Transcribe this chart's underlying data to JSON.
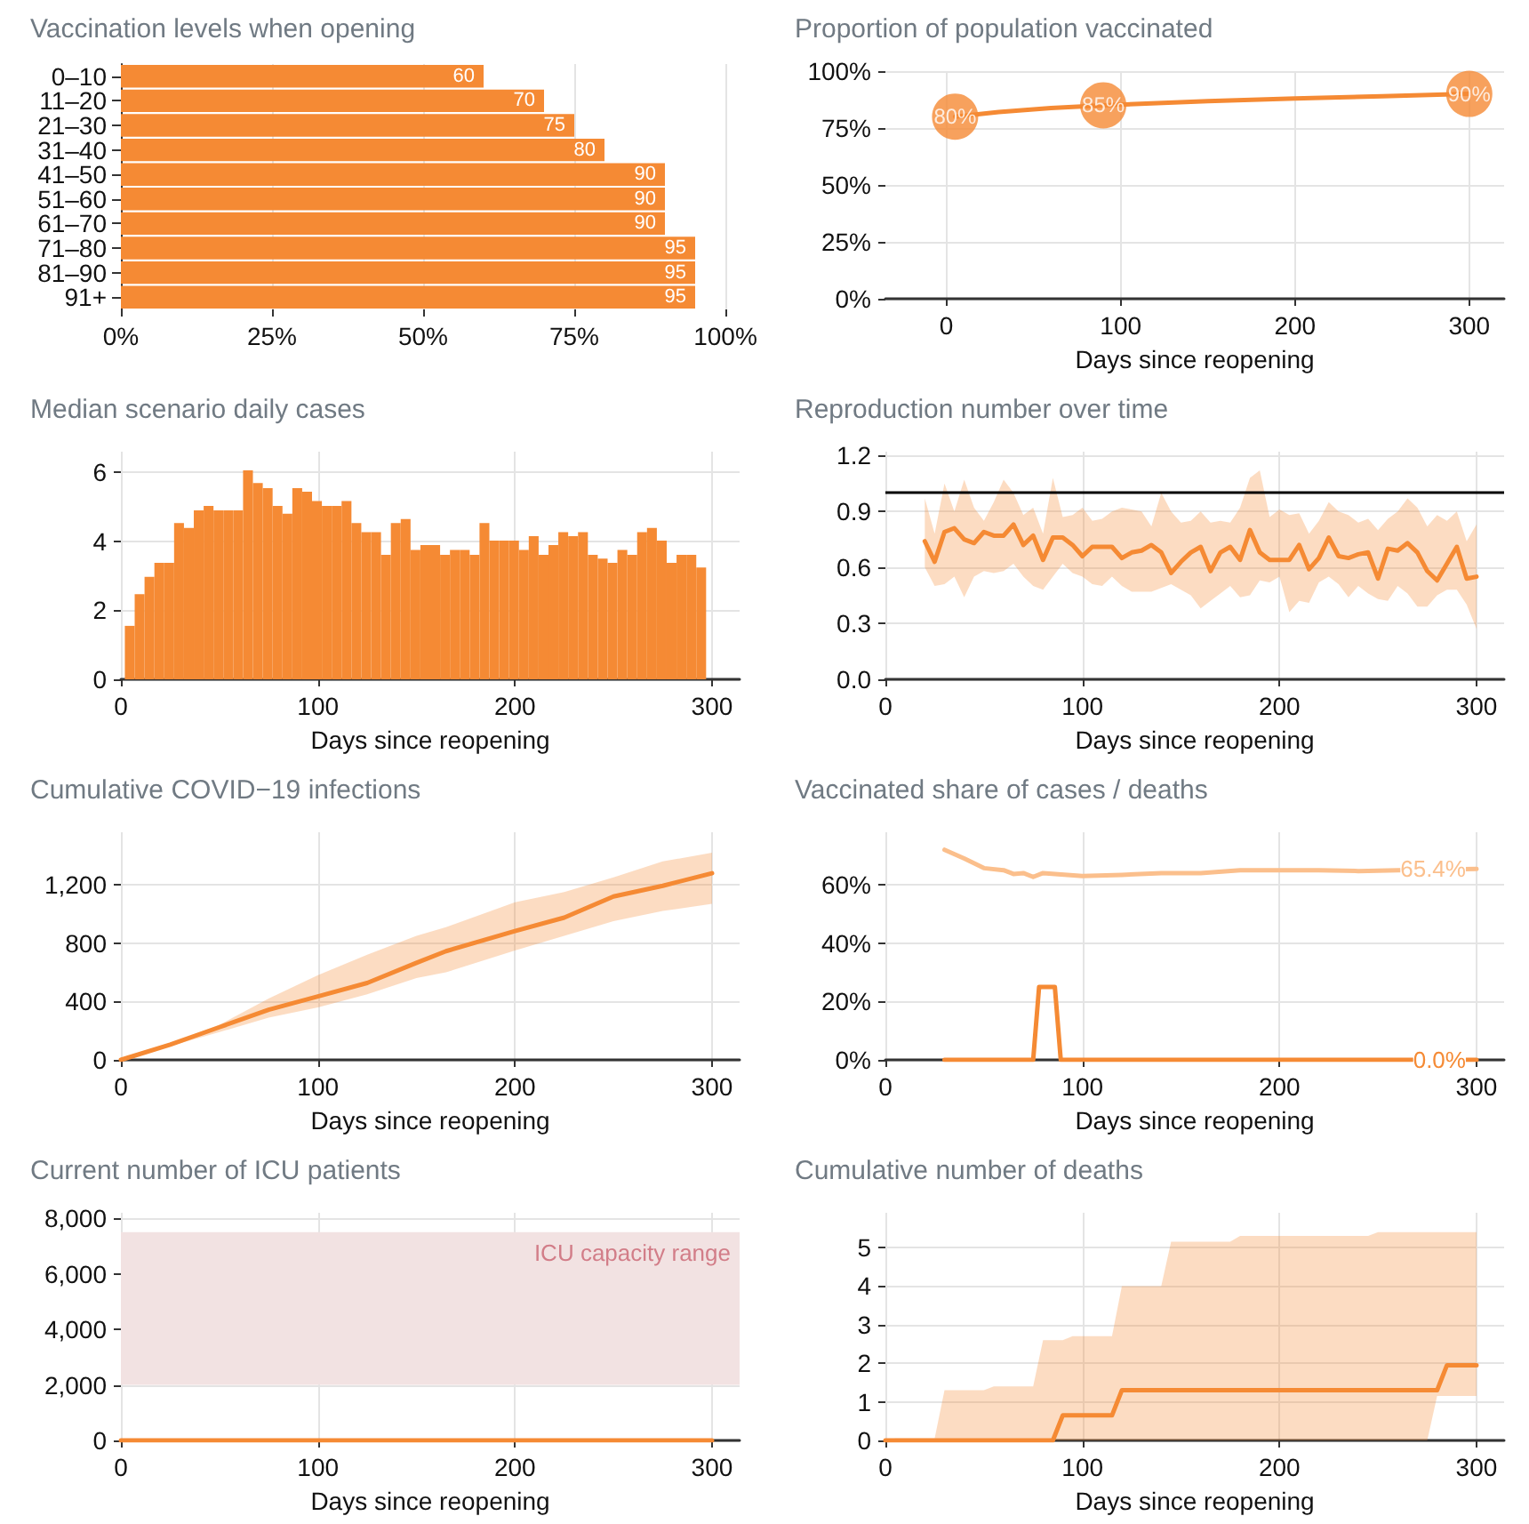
{
  "chart_data": [
    {
      "type": "bar",
      "orientation": "horizontal",
      "title": "Vaccination levels when opening",
      "categories": [
        "0–10",
        "11–20",
        "21–30",
        "31–40",
        "41–50",
        "51–60",
        "61–70",
        "71–80",
        "81–90",
        "91+"
      ],
      "values": [
        60,
        70,
        75,
        80,
        90,
        90,
        90,
        95,
        95,
        95
      ],
      "color": "#f58a34",
      "data_labels": true,
      "xlim": [
        0,
        100
      ],
      "xticks": [
        {
          "value": 0,
          "label": "0%"
        },
        {
          "value": 25,
          "label": "25%"
        },
        {
          "value": 50,
          "label": "50%"
        },
        {
          "value": 75,
          "label": "75%"
        },
        {
          "value": 100,
          "label": "100%"
        }
      ],
      "grid": "x"
    },
    {
      "type": "line",
      "title": "Proportion of population vaccinated",
      "xlabel": "Days since reopening",
      "series": [
        {
          "type": "line",
          "color": "#f58a34",
          "marker": "none",
          "x": [
            5,
            30,
            60,
            90,
            150,
            200,
            250,
            300
          ],
          "values": [
            80,
            82,
            83.8,
            85,
            86.8,
            88,
            89,
            90
          ]
        },
        {
          "type": "scatter",
          "color": "#f58a34",
          "marker": "circle",
          "x": [
            5,
            90,
            300
          ],
          "values": [
            80,
            85,
            90
          ],
          "value_labels": [
            "80%",
            "85%",
            "90%"
          ]
        }
      ],
      "xlim": [
        -35,
        320
      ],
      "xticks": [
        0,
        100,
        200,
        300
      ],
      "ylim": [
        0,
        100
      ],
      "yticks": [
        {
          "value": 0,
          "label": "0%"
        },
        {
          "value": 25,
          "label": "25%"
        },
        {
          "value": 50,
          "label": "50%"
        },
        {
          "value": 75,
          "label": "75%"
        },
        {
          "value": 100,
          "label": "100%"
        }
      ],
      "grid": true
    },
    {
      "type": "histogram",
      "title": "Median scenario daily cases",
      "xlabel": "Days since reopening",
      "color": "#f58a34",
      "bins": [
        2,
        7,
        12,
        17,
        22,
        27,
        32,
        37,
        42,
        47,
        52,
        57,
        62,
        67,
        72,
        77,
        82,
        87,
        92,
        97,
        102,
        107,
        112,
        117,
        122,
        127,
        132,
        137,
        142,
        147,
        152,
        157,
        162,
        167,
        172,
        177,
        182,
        187,
        192,
        197,
        202,
        207,
        212,
        217,
        222,
        227,
        232,
        237,
        242,
        247,
        252,
        257,
        262,
        267,
        272,
        277,
        282,
        287,
        292,
        297
      ],
      "values": [
        1.55,
        2.47,
        2.97,
        3.38,
        3.38,
        4.53,
        4.39,
        4.9,
        5.03,
        4.9,
        4.9,
        4.9,
        6.06,
        5.69,
        5.54,
        5.03,
        4.8,
        5.54,
        5.44,
        5.17,
        5.03,
        5.03,
        5.17,
        4.53,
        4.27,
        4.27,
        3.61,
        4.53,
        4.65,
        3.75,
        3.89,
        3.89,
        3.61,
        3.75,
        3.75,
        3.61,
        4.53,
        4.02,
        4.02,
        4.02,
        3.75,
        4.15,
        3.61,
        3.89,
        4.27,
        4.15,
        4.27,
        3.61,
        3.5,
        3.38,
        3.75,
        3.61,
        4.27,
        4.39,
        4.02,
        3.38,
        3.61,
        3.61,
        3.24
      ],
      "xlim": [
        0,
        314
      ],
      "xticks": [
        0,
        100,
        200,
        300
      ],
      "ylim": [
        0,
        6.6
      ],
      "yticks": [
        0,
        2,
        4,
        6
      ],
      "grid": true
    },
    {
      "type": "line",
      "title": "Reproduction number over time",
      "xlabel": "Days since reopening",
      "series": [
        {
          "color": "#f58a34",
          "x": [
            20,
            25,
            30,
            35,
            40,
            45,
            50,
            55,
            60,
            65,
            70,
            75,
            80,
            85,
            90,
            95,
            100,
            105,
            110,
            115,
            120,
            125,
            130,
            135,
            140,
            145,
            150,
            155,
            160,
            165,
            170,
            175,
            180,
            185,
            190,
            195,
            200,
            205,
            210,
            215,
            220,
            225,
            230,
            235,
            240,
            245,
            250,
            255,
            260,
            265,
            270,
            275,
            280,
            285,
            290,
            295,
            300
          ],
          "values": [
            0.74,
            0.63,
            0.79,
            0.81,
            0.75,
            0.73,
            0.79,
            0.77,
            0.77,
            0.83,
            0.72,
            0.77,
            0.64,
            0.76,
            0.76,
            0.72,
            0.66,
            0.71,
            0.71,
            0.71,
            0.65,
            0.68,
            0.69,
            0.72,
            0.68,
            0.57,
            0.63,
            0.68,
            0.71,
            0.58,
            0.68,
            0.71,
            0.64,
            0.8,
            0.68,
            0.64,
            0.64,
            0.64,
            0.72,
            0.59,
            0.65,
            0.76,
            0.66,
            0.65,
            0.67,
            0.68,
            0.54,
            0.7,
            0.69,
            0.73,
            0.68,
            0.58,
            0.53,
            0.62,
            0.71,
            0.54,
            0.55
          ],
          "upper": [
            0.97,
            0.78,
            1.05,
            0.9,
            1.07,
            0.92,
            0.85,
            0.95,
            1.07,
            1.0,
            0.88,
            0.92,
            0.78,
            1.08,
            0.87,
            0.88,
            0.92,
            0.85,
            0.86,
            0.9,
            0.92,
            0.91,
            0.9,
            0.82,
            1.0,
            0.9,
            0.84,
            0.85,
            0.9,
            0.84,
            0.85,
            0.84,
            0.92,
            1.08,
            1.12,
            0.87,
            0.91,
            0.88,
            0.89,
            0.78,
            0.85,
            0.95,
            0.9,
            0.88,
            0.84,
            0.86,
            0.8,
            0.86,
            0.9,
            0.97,
            0.92,
            0.82,
            0.88,
            0.85,
            0.9,
            0.74,
            0.83
          ],
          "lower": [
            0.6,
            0.5,
            0.51,
            0.55,
            0.44,
            0.55,
            0.58,
            0.57,
            0.58,
            0.62,
            0.55,
            0.5,
            0.48,
            0.55,
            0.62,
            0.57,
            0.55,
            0.51,
            0.5,
            0.55,
            0.5,
            0.47,
            0.47,
            0.47,
            0.49,
            0.51,
            0.48,
            0.45,
            0.38,
            0.42,
            0.46,
            0.5,
            0.44,
            0.45,
            0.53,
            0.52,
            0.55,
            0.36,
            0.42,
            0.41,
            0.52,
            0.55,
            0.51,
            0.44,
            0.5,
            0.46,
            0.43,
            0.42,
            0.5,
            0.46,
            0.39,
            0.39,
            0.45,
            0.48,
            0.48,
            0.4,
            0.27
          ]
        }
      ],
      "ref_lines": [
        {
          "axis": "y",
          "value": 1,
          "color": "#000000"
        }
      ],
      "xlim": [
        0,
        314
      ],
      "xticks": [
        0,
        100,
        200,
        300
      ],
      "ylim": [
        0,
        1.22
      ],
      "yticks": [
        {
          "value": 0,
          "label": "0.0"
        },
        0.3,
        0.6,
        0.9,
        1.2
      ],
      "grid": true
    },
    {
      "type": "line",
      "title": "Cumulative COVID−19 infections",
      "xlabel": "Days since reopening",
      "series": [
        {
          "color": "#f58a34",
          "x": [
            0,
            25,
            50,
            75,
            100,
            125,
            150,
            165,
            200,
            225,
            250,
            275,
            300
          ],
          "values": [
            0,
            105,
            224,
            343,
            435,
            527,
            665,
            745,
            883,
            975,
            1120,
            1193,
            1279
          ],
          "upper": [
            0,
            110,
            240,
            420,
            580,
            720,
            850,
            910,
            1080,
            1150,
            1250,
            1360,
            1420
          ],
          "lower": [
            0,
            95,
            190,
            290,
            360,
            450,
            560,
            600,
            750,
            850,
            950,
            1020,
            1070
          ]
        }
      ],
      "xlim": [
        0,
        314
      ],
      "xticks": [
        0,
        100,
        200,
        300
      ],
      "ylim": [
        0,
        1560
      ],
      "yticks": [
        0,
        400,
        800,
        {
          "value": 1200,
          "label": "1,200"
        }
      ],
      "grid": true
    },
    {
      "type": "line",
      "title": "Vaccinated share of cases / deaths",
      "xlabel": "Days since reopening",
      "series": [
        {
          "color": "#fbbf8c",
          "x": [
            30,
            40,
            50,
            60,
            65,
            70,
            75,
            80,
            100,
            120,
            140,
            160,
            180,
            200,
            220,
            240,
            260,
            300
          ],
          "values": [
            72,
            69,
            65.7,
            65,
            63.7,
            64,
            62.7,
            64,
            63,
            63.4,
            64,
            64,
            65,
            65,
            65,
            64.7,
            65,
            65.4
          ],
          "value_labels": [
            null,
            null,
            null,
            null,
            null,
            null,
            null,
            null,
            null,
            null,
            null,
            null,
            null,
            null,
            null,
            null,
            null,
            "65.4%"
          ]
        },
        {
          "color": "#f58a34",
          "x": [
            30,
            75,
            78,
            86,
            89,
            300
          ],
          "values": [
            0,
            0,
            25,
            25,
            0,
            0
          ],
          "value_labels": [
            null,
            null,
            null,
            null,
            null,
            "0.0%"
          ]
        }
      ],
      "xlim": [
        0,
        314
      ],
      "xticks": [
        0,
        100,
        200,
        300
      ],
      "ylim": [
        0,
        78
      ],
      "yticks": [
        {
          "value": 0,
          "label": "0%"
        },
        {
          "value": 20,
          "label": "20%"
        },
        {
          "value": 40,
          "label": "40%"
        },
        {
          "value": 60,
          "label": "60%"
        }
      ],
      "grid": true
    },
    {
      "type": "line",
      "title": "Current number of ICU patients",
      "xlabel": "Days since reopening",
      "series": [
        {
          "color": "#f58a34",
          "x": [
            0,
            300
          ],
          "values": [
            0,
            0
          ]
        }
      ],
      "bands": [
        {
          "axis": "y",
          "from": 2000,
          "to": 7500,
          "label": "ICU capacity range",
          "color": "#f2e2e2"
        }
      ],
      "xlim": [
        0,
        314
      ],
      "xticks": [
        0,
        100,
        200,
        300
      ],
      "ylim": [
        0,
        8200
      ],
      "yticks": [
        0,
        {
          "value": 2000,
          "label": "2,000"
        },
        {
          "value": 4000,
          "label": "4,000"
        },
        {
          "value": 6000,
          "label": "6,000"
        },
        {
          "value": 8000,
          "label": "8,000"
        }
      ],
      "grid": true
    },
    {
      "type": "line",
      "title": "Cumulative number of deaths",
      "xlabel": "Days since reopening",
      "series": [
        {
          "color": "#f58a34",
          "x": [
            0,
            5,
            25,
            30,
            50,
            55,
            75,
            80,
            85,
            90,
            95,
            115,
            120,
            140,
            145,
            175,
            180,
            245,
            250,
            275,
            280,
            285,
            300
          ],
          "values": [
            0,
            0,
            0,
            0,
            0,
            0,
            0,
            0,
            0,
            0.65,
            0.65,
            0.65,
            1.3,
            1.3,
            1.3,
            1.3,
            1.3,
            1.3,
            1.3,
            1.3,
            1.3,
            1.95,
            1.95
          ],
          "upper": [
            0,
            0.05,
            0.05,
            1.3,
            1.3,
            1.4,
            1.4,
            2.6,
            2.6,
            2.6,
            2.7,
            2.7,
            4.0,
            4.0,
            5.15,
            5.15,
            5.3,
            5.3,
            5.4,
            5.4,
            5.4,
            5.4,
            5.4
          ],
          "lower": [
            0,
            0,
            0,
            0,
            0,
            0,
            0,
            0,
            0,
            0,
            0,
            0,
            0,
            0,
            0,
            0,
            0,
            0,
            0,
            0,
            1.15,
            1.15,
            1.15
          ]
        }
      ],
      "xlim": [
        0,
        314
      ],
      "xticks": [
        0,
        100,
        200,
        300
      ],
      "ylim": [
        0,
        5.9
      ],
      "yticks": [
        0,
        1,
        2,
        3,
        4,
        5
      ],
      "grid": true
    }
  ]
}
